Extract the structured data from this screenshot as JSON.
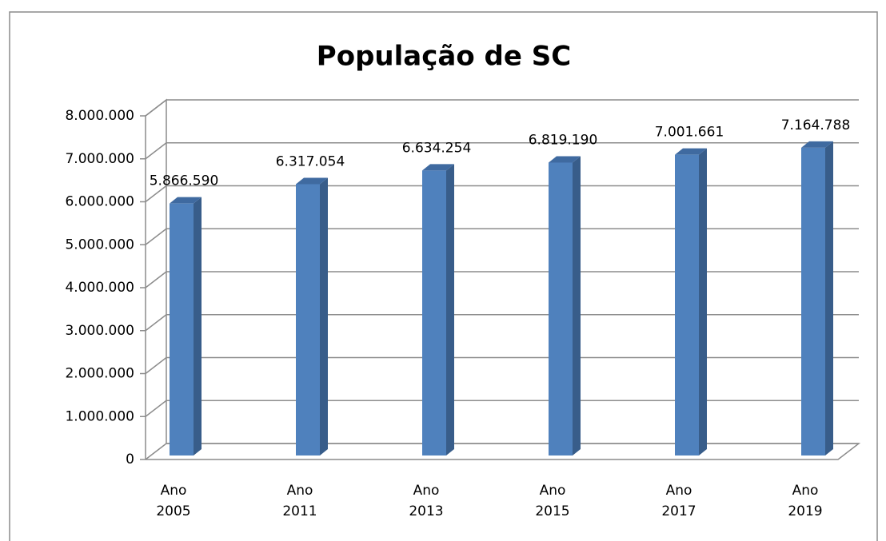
{
  "chart_data": {
    "type": "bar",
    "title": "População de SC",
    "categories": [
      "Ano 2005",
      "Ano 2011",
      "Ano 2013",
      "Ano 2015",
      "Ano 2017",
      "Ano 2019"
    ],
    "values": [
      5866590,
      6317054,
      6634254,
      6819190,
      7001661,
      7164788
    ],
    "value_labels": [
      "5.866.590",
      "6.317.054",
      "6.634.254",
      "6.819.190",
      "7.001.661",
      "7.164.788"
    ],
    "color": "#4f81bd",
    "ylim": [
      0,
      8000000
    ],
    "yticks": [
      0,
      {
        "value": 1000000,
        "label": "1.000.000"
      },
      {
        "value": 2000000,
        "label": "2.000.000"
      },
      {
        "value": 3000000,
        "label": "3.000.000"
      },
      {
        "value": 4000000,
        "label": "4.000.000"
      },
      {
        "value": 5000000,
        "label": "5.000.000"
      },
      {
        "value": 6000000,
        "label": "6.000.000"
      },
      {
        "value": 7000000,
        "label": "7.000.000"
      },
      {
        "value": 8000000,
        "label": "8.000.000"
      }
    ],
    "grid": true
  }
}
